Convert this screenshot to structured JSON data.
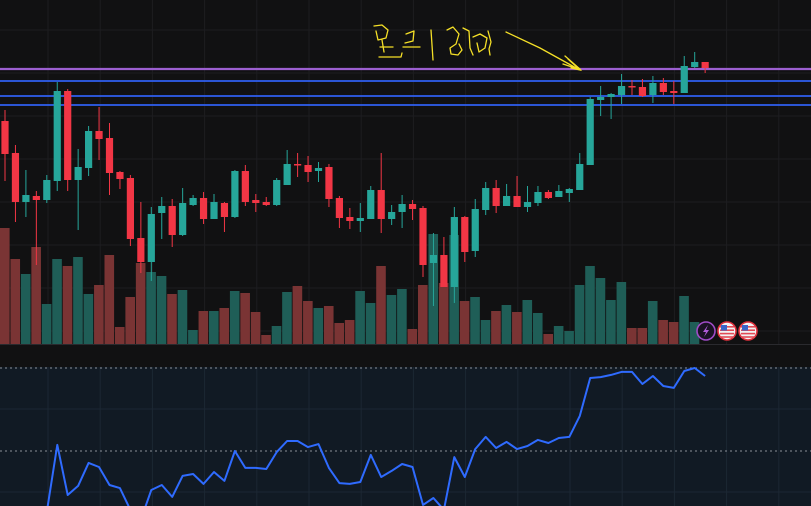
{
  "chart_data": {
    "type": "candlestick",
    "title": "",
    "xlabel": "",
    "ylabel": "",
    "price_ylim": [
      6,
      350
    ],
    "grid": true,
    "colors": {
      "up": "#26a69a",
      "down": "#f23645",
      "volume_up": "#1f5e57",
      "volume_down": "#7a3434",
      "indicator": "#2f6bff",
      "purple_line": "#9c5fd0",
      "blue_line": "#2f5ff0",
      "annotation": "#f5e027",
      "background": "#111112",
      "pane_background": "#111a24"
    },
    "candles_ohlc": [
      [
        229,
        240,
        169,
        196
      ],
      [
        197,
        205,
        128,
        148
      ],
      [
        148,
        180,
        133,
        155
      ],
      [
        154,
        159,
        85,
        150
      ],
      [
        150,
        175,
        147,
        170
      ],
      [
        169,
        268,
        159,
        259
      ],
      [
        259,
        261,
        159,
        170
      ],
      [
        170,
        201,
        120,
        183
      ],
      [
        182,
        224,
        174,
        219
      ],
      [
        219,
        243,
        190,
        211
      ],
      [
        212,
        227,
        155,
        177
      ],
      [
        178,
        179,
        161,
        171
      ],
      [
        172,
        175,
        104,
        111
      ],
      [
        112,
        148,
        77,
        88
      ],
      [
        88,
        143,
        69,
        136
      ],
      [
        137,
        153,
        111,
        144
      ],
      [
        144,
        151,
        103,
        115
      ],
      [
        115,
        162,
        114,
        147
      ],
      [
        145,
        155,
        144,
        152
      ],
      [
        152,
        158,
        126,
        131
      ],
      [
        131,
        156,
        131,
        148
      ],
      [
        147,
        148,
        118,
        133
      ],
      [
        133,
        180,
        132,
        179
      ],
      [
        179,
        185,
        144,
        148
      ],
      [
        150,
        156,
        138,
        147
      ],
      [
        148,
        153,
        144,
        145
      ],
      [
        145,
        172,
        144,
        170
      ],
      [
        165,
        200,
        165,
        186
      ],
      [
        186,
        197,
        173,
        185
      ],
      [
        185,
        194,
        168,
        178
      ],
      [
        179,
        188,
        168,
        182
      ],
      [
        183,
        186,
        143,
        151
      ],
      [
        152,
        154,
        122,
        132
      ],
      [
        133,
        142,
        121,
        129
      ],
      [
        129,
        147,
        118,
        132
      ],
      [
        131,
        164,
        131,
        160
      ],
      [
        160,
        197,
        117,
        131
      ],
      [
        131,
        145,
        125,
        138
      ],
      [
        138,
        155,
        122,
        146
      ],
      [
        146,
        150,
        130,
        141
      ],
      [
        142,
        144,
        73,
        85
      ],
      [
        87,
        117,
        44,
        95
      ],
      [
        95,
        113,
        63,
        63
      ],
      [
        63,
        143,
        47,
        133
      ],
      [
        133,
        134,
        88,
        98
      ],
      [
        99,
        151,
        93,
        141
      ],
      [
        140,
        168,
        135,
        162
      ],
      [
        162,
        170,
        137,
        144
      ],
      [
        144,
        166,
        144,
        154
      ],
      [
        154,
        174,
        143,
        143
      ],
      [
        143,
        164,
        138,
        148
      ],
      [
        147,
        164,
        144,
        158
      ],
      [
        158,
        160,
        151,
        152
      ],
      [
        153,
        165,
        153,
        159
      ],
      [
        157,
        162,
        148,
        161
      ],
      [
        160,
        197,
        160,
        186
      ],
      [
        185,
        253,
        185,
        251
      ],
      [
        250,
        264,
        234,
        253
      ],
      [
        253,
        257,
        231,
        256
      ],
      [
        255,
        276,
        246,
        264
      ],
      [
        264,
        270,
        255,
        263
      ],
      [
        263,
        271,
        253,
        254
      ],
      [
        255,
        274,
        247,
        267
      ],
      [
        267,
        272,
        255,
        258
      ],
      [
        259,
        269,
        246,
        257
      ],
      [
        257,
        294,
        257,
        284
      ],
      [
        283,
        298,
        282,
        288
      ],
      [
        288,
        288,
        277,
        282
      ]
    ],
    "volume": [
      116,
      85,
      70,
      97,
      40,
      85,
      78,
      87,
      50,
      59,
      89,
      17,
      47,
      81,
      72,
      68,
      50,
      54,
      14,
      33,
      33,
      36,
      53,
      51,
      32,
      9,
      18,
      52,
      58,
      43,
      36,
      38,
      21,
      24,
      53,
      41,
      78,
      49,
      55,
      15,
      59,
      110,
      61,
      109,
      43,
      47,
      24,
      33,
      39,
      32,
      44,
      31,
      10,
      18,
      13,
      59,
      78,
      66,
      44,
      62,
      16,
      16,
      43,
      24,
      22,
      48,
      22,
      0
    ],
    "horizontal_levels": [
      {
        "price": 281,
        "color": "purple"
      },
      {
        "price": 269,
        "color": "blue"
      },
      {
        "price": 254,
        "color": "blue"
      },
      {
        "price": 245,
        "color": "blue"
      }
    ],
    "indicator": {
      "levels": [
        80,
        50
      ],
      "ylim": [
        30,
        80
      ],
      "values": [
        null,
        null,
        null,
        null,
        28,
        52.2,
        34.1,
        37.4,
        45.7,
        44.2,
        37.7,
        36.6,
        28.7,
        25.1,
        35.9,
        37.7,
        33.4,
        41.0,
        41.7,
        38.1,
        42.4,
        39.2,
        50.0,
        43.9,
        43.9,
        43.5,
        49.6,
        53.6,
        53.6,
        51.4,
        52.5,
        43.9,
        38.4,
        38.1,
        38.8,
        48.6,
        40.6,
        42.8,
        45.3,
        44.2,
        30.5,
        33.0,
        28.7,
        47.8,
        40.6,
        50.7,
        55.1,
        51.1,
        53.3,
        50.7,
        51.8,
        54.0,
        52.9,
        54.7,
        55.1,
        62.7,
        76.4,
        76.7,
        77.5,
        78.6,
        78.6,
        74.2,
        77.1,
        73.5,
        72.8,
        78.9,
        80.0,
        77.1
      ]
    },
    "event_markers": [
      {
        "icon": "lightning-icon",
        "kind": "event"
      },
      {
        "icon": "us-flag-icon",
        "kind": "economic-event"
      },
      {
        "icon": "us-flag-icon",
        "kind": "economic-event"
      }
    ]
  }
}
